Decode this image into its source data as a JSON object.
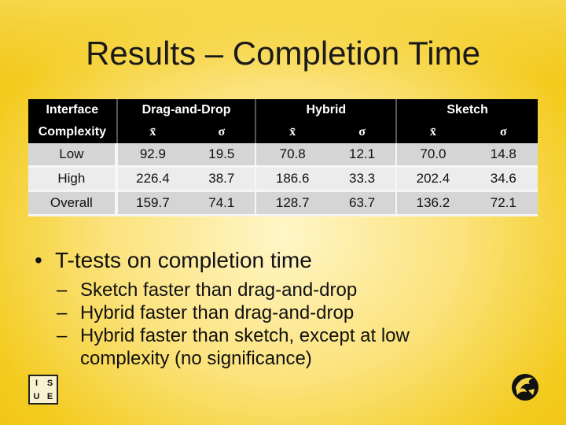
{
  "title": "Results – Completion Time",
  "table": {
    "corner_top": "Interface",
    "corner_bottom": "Complexity",
    "groups": [
      "Drag-and-Drop",
      "Hybrid",
      "Sketch"
    ],
    "stats": [
      "x̄",
      "σ",
      "x̄",
      "σ",
      "x̄",
      "σ"
    ],
    "rows": [
      {
        "label": "Low",
        "values": [
          "92.9",
          "19.5",
          "70.8",
          "12.1",
          "70.0",
          "14.8"
        ]
      },
      {
        "label": "High",
        "values": [
          "226.4",
          "38.7",
          "186.6",
          "33.3",
          "202.4",
          "34.6"
        ]
      },
      {
        "label": "Overall",
        "values": [
          "159.7",
          "74.1",
          "128.7",
          "63.7",
          "136.2",
          "72.1"
        ]
      }
    ]
  },
  "bullet": "T-tests on completion time",
  "subbullets": [
    "Sketch faster than drag-and-drop",
    "Hybrid faster than drag-and-drop",
    "Hybrid faster than sketch, except at low complexity (no significance)"
  ],
  "logo_left_letters": [
    "I",
    "S",
    "U",
    "E"
  ],
  "icons": {
    "left": "isue-logo-icon",
    "right": "pegasus-logo-icon"
  }
}
